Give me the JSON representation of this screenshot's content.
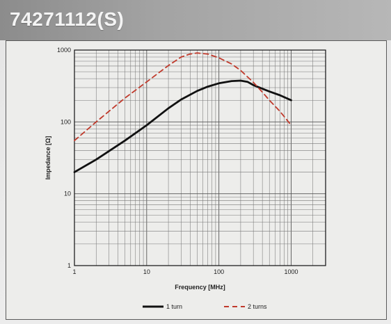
{
  "header": {
    "title": "74271112(S)"
  },
  "chart_data": {
    "type": "line",
    "x_scale": "log",
    "y_scale": "log",
    "xlim": [
      1,
      3000
    ],
    "ylim": [
      1,
      1000
    ],
    "xlabel": "Frequency [MHz]",
    "ylabel": "Impedance [Ω]",
    "x_ticks": [
      "1",
      "10",
      "100",
      "1000"
    ],
    "y_ticks": [
      "1",
      "10",
      "100",
      "1000"
    ],
    "grid": true,
    "legend_position": "bottom",
    "series": [
      {
        "name": "1 turn",
        "color": "#111111",
        "style": "solid",
        "x": [
          1,
          2,
          5,
          10,
          20,
          30,
          50,
          70,
          100,
          150,
          200,
          250,
          300,
          400,
          500,
          700,
          1000
        ],
        "y": [
          20,
          30,
          55,
          90,
          155,
          205,
          270,
          310,
          345,
          370,
          375,
          360,
          325,
          290,
          265,
          235,
          200
        ]
      },
      {
        "name": "2 turns",
        "color": "#c0392b",
        "style": "dashed",
        "x": [
          1,
          2,
          5,
          10,
          20,
          30,
          40,
          50,
          70,
          100,
          150,
          200,
          300,
          400,
          500,
          700,
          1000
        ],
        "y": [
          55,
          100,
          215,
          360,
          610,
          800,
          880,
          910,
          880,
          780,
          640,
          520,
          355,
          260,
          200,
          140,
          90
        ]
      }
    ]
  }
}
